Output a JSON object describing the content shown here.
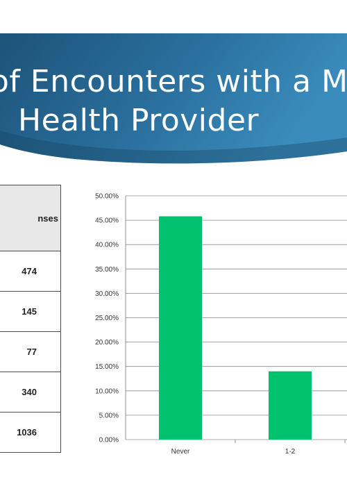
{
  "slide": {
    "title_line1": "of Encounters with a M",
    "title_line2": "Health Provider"
  },
  "table": {
    "header": "nses",
    "values": [
      "474",
      "145",
      "77",
      "340",
      "1036"
    ]
  },
  "colors": {
    "banner_dark": "#1f5a82",
    "banner_light": "#2f7fb0",
    "bar": "#00c16e",
    "grid": "#8c8c8c"
  },
  "chart_data": {
    "type": "bar",
    "categories": [
      "Never",
      "1-2"
    ],
    "values": [
      45.8,
      14.0
    ],
    "y_tick_labels": [
      "0.00%",
      "5.00%",
      "10.00%",
      "15.00%",
      "20.00%",
      "25.00%",
      "30.00%",
      "35.00%",
      "40.00%",
      "45.00%",
      "50.00%"
    ],
    "ylim": [
      0,
      50
    ],
    "grid": true,
    "legend": "none"
  }
}
